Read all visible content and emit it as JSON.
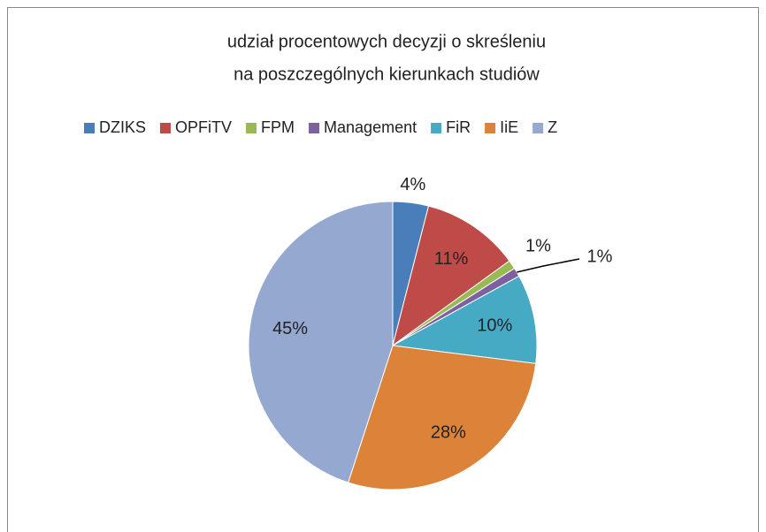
{
  "chart_data": {
    "type": "pie",
    "title": [
      "udział procentowych decyzji o skreśleniu",
      "na poszczególnych kierunkach studiów"
    ],
    "categories": [
      "DZIKS",
      "OPFiTV",
      "FPM",
      "Management",
      "FiR",
      "IiE",
      "Z"
    ],
    "values": [
      4,
      11,
      1,
      1,
      10,
      28,
      45
    ],
    "value_labels": [
      "4%",
      "11%",
      "1%",
      "1%",
      "10%",
      "28%",
      "45%"
    ],
    "colors": [
      "#4a7ebb",
      "#be4b48",
      "#98b954",
      "#7d60a0",
      "#46aac5",
      "#dd8339",
      "#94a8d0"
    ],
    "legend": "top"
  }
}
